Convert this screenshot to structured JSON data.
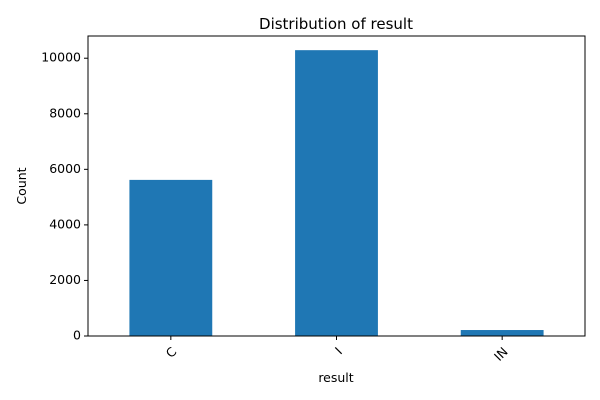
{
  "chart_data": {
    "type": "bar",
    "title": "Distribution of result",
    "xlabel": "result",
    "ylabel": "Count",
    "categories": [
      "C",
      "I",
      "IN"
    ],
    "values": [
      5620,
      10290,
      215
    ],
    "ylim": [
      0,
      10800
    ],
    "yticks": [
      "0",
      "2000",
      "4000",
      "6000",
      "8000",
      "10000"
    ],
    "ytick_values": [
      0,
      2000,
      4000,
      6000,
      8000,
      10000
    ],
    "bar_color": "#1f77b4",
    "grid": false,
    "legend": "none"
  }
}
